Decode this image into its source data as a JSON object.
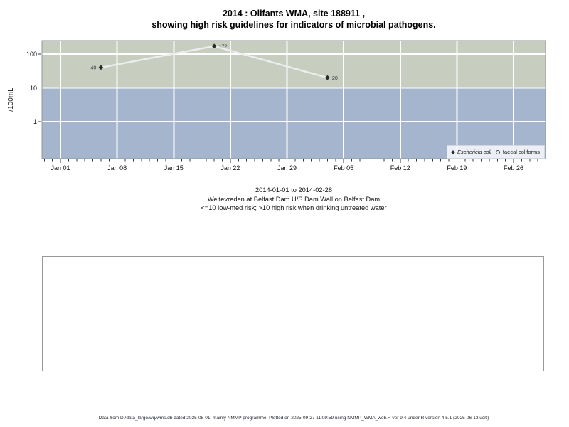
{
  "chart_data": {
    "type": "line",
    "title_lines": [
      "2014 : Olifants WMA, site 188911 ,",
      "showing high risk guidelines for indicators of microbial pathogens."
    ],
    "ylabel": "/100mL",
    "y_scale": "log",
    "ylim": [
      0.08,
      250
    ],
    "y_ticks": [
      {
        "label": "100",
        "value": 100
      },
      {
        "label": "10",
        "value": 10
      },
      {
        "label": "1",
        "value": 1
      }
    ],
    "x_tick_labels": [
      "Jan 01",
      "Jan 08",
      "Jan 15",
      "Jan 22",
      "Jan 29",
      "Feb 05",
      "Feb 12",
      "Feb 19",
      "Feb 26"
    ],
    "x_tick_days": [
      0,
      7,
      14,
      21,
      28,
      35,
      42,
      49,
      56
    ],
    "x_minor_day_range": [
      -2,
      59
    ],
    "xlim_dates": [
      "2014-01-01",
      "2014-02-28"
    ],
    "grid": true,
    "grid_color": "#ffffff",
    "legend_position": "bottom-right",
    "bands": [
      {
        "name": "high risk (>10)",
        "color": "#c7cec0",
        "from": 10,
        "to": 250
      },
      {
        "name": "low-med risk (<=10)",
        "color": "#a6b5ce",
        "from": 0.08,
        "to": 10
      }
    ],
    "series": [
      {
        "name": "Eschericia coli",
        "marker": "filled-diamond",
        "marker_color": "#2b2b2b",
        "line_color": "#ededed",
        "points": [
          {
            "date": "2014-01-06",
            "day": 5,
            "value": 40,
            "label": "40",
            "label_side": "left"
          },
          {
            "date": "2014-01-20",
            "day": 19,
            "value": 172,
            "label": "172",
            "label_side": "right"
          },
          {
            "date": "2014-02-03",
            "day": 33,
            "value": 20,
            "label": "20",
            "label_side": "right"
          }
        ]
      },
      {
        "name": "faecal coliforms",
        "marker": "open-circle",
        "points": []
      }
    ]
  },
  "captions": {
    "line1": "2014-01-01 to 2014-02-28",
    "line2": "Weltevreden at Belfast Dam U/S Dam Wall on Belfast Dam",
    "line3": "<=10 low-med risk; >10 high risk when drinking untreated water"
  },
  "footer": {
    "text": "Data from D:/data_large/wq/wms.db dated 2025-08-01, mainly NMMP programme. Plotted on 2025-09-27 11:09:59 using NMMP_WMA_web.R ver 9.4 under R version 4.5.1 (2025-06-13 ucrt)"
  }
}
